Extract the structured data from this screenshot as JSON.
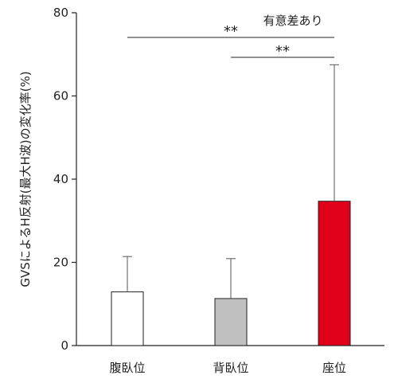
{
  "chart_data": {
    "type": "bar",
    "categories": [
      "腹臥位",
      "背臥位",
      "座位"
    ],
    "values": [
      12.9,
      11.3,
      34.7
    ],
    "errors": [
      8.5,
      9.6,
      32.8
    ],
    "colors": [
      "#ffffff",
      "#c0c0c0",
      "#e0001a"
    ],
    "ylabel": "GVSによるH反射(最大H波)の変化率(%)",
    "ylim": [
      0,
      80
    ],
    "yticks": [
      0,
      20,
      40,
      60,
      80
    ],
    "grid": false,
    "annotation": "有意差あり",
    "significance": [
      {
        "from": 0,
        "to": 2,
        "label": "**"
      },
      {
        "from": 1,
        "to": 2,
        "label": "**"
      }
    ]
  }
}
